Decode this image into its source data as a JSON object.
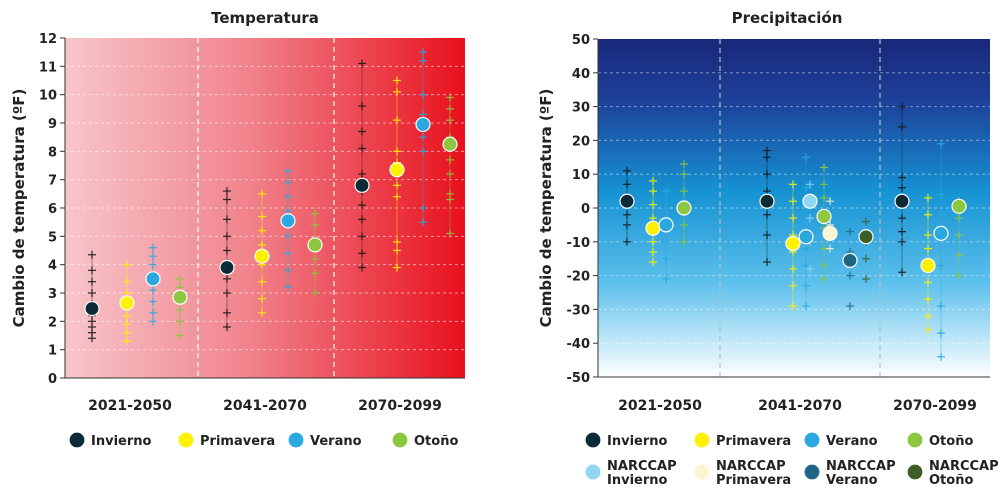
{
  "chart_data": [
    {
      "type": "scatter",
      "title": "Temperatura",
      "ylabel": "Cambio de temperatura (ºF)",
      "xlabel": "",
      "ylim": [
        0,
        12
      ],
      "yticks": [
        0,
        1,
        2,
        3,
        4,
        5,
        6,
        7,
        8,
        9,
        10,
        11,
        12
      ],
      "grid": true,
      "legend_position": "bottom",
      "background": "pink-to-red gradient",
      "periods": [
        "2021-2050",
        "2041-2070",
        "2070-2099"
      ],
      "series": [
        {
          "name": "Invierno",
          "color": "#0d2a37",
          "kind": "mean",
          "values": [
            2.45,
            3.9,
            6.8
          ],
          "models": [
            [
              1.4,
              1.6,
              1.8,
              2.0,
              2.2,
              2.6,
              3.0,
              3.4,
              3.8,
              4.35
            ],
            [
              1.8,
              2.3,
              3.0,
              3.5,
              4.5,
              5.0,
              5.6,
              6.3,
              6.6
            ],
            [
              3.9,
              4.4,
              5.0,
              5.6,
              6.1,
              6.6,
              7.2,
              8.1,
              8.7,
              9.6,
              11.1
            ]
          ]
        },
        {
          "name": "Primavera",
          "color": "#fff200",
          "kind": "mean",
          "values": [
            2.65,
            4.3,
            7.35
          ],
          "models": [
            [
              1.3,
              1.6,
              1.9,
              2.2,
              2.7,
              3.0,
              3.4,
              4.0
            ],
            [
              2.3,
              2.8,
              3.4,
              4.0,
              4.7,
              5.2,
              5.7,
              6.5
            ],
            [
              3.9,
              4.5,
              4.8,
              6.4,
              6.8,
              7.6,
              8.0,
              9.1,
              10.1,
              10.5
            ]
          ]
        },
        {
          "name": "Verano",
          "color": "#2ba8df",
          "kind": "mean",
          "values": [
            3.5,
            5.55,
            8.95
          ],
          "models": [
            [
              2.0,
              2.3,
              2.7,
              3.1,
              3.6,
              4.0,
              4.3,
              4.6
            ],
            [
              3.2,
              3.8,
              4.4,
              5.0,
              5.9,
              6.4,
              6.9,
              7.3
            ],
            [
              5.5,
              6.0,
              8.0,
              8.5,
              9.3,
              10.0,
              11.2,
              11.5
            ]
          ]
        },
        {
          "name": "Otoño",
          "color": "#8dc63f",
          "kind": "mean",
          "values": [
            2.85,
            4.7,
            8.25
          ],
          "models": [
            [
              1.5,
              2.0,
              2.4,
              2.9,
              3.2,
              3.5
            ],
            [
              3.0,
              3.7,
              4.2,
              4.9,
              5.4,
              5.8
            ],
            [
              5.1,
              6.3,
              6.5,
              7.2,
              7.7,
              8.5,
              9.1,
              9.5,
              9.9
            ]
          ]
        }
      ]
    },
    {
      "type": "scatter",
      "title": "Precipitación",
      "ylabel": "Cambio de temperatura (ºF)",
      "xlabel": "",
      "ylim": [
        -50,
        50
      ],
      "yticks": [
        50,
        40,
        30,
        20,
        10,
        0,
        -10,
        -20,
        -30,
        -40,
        -50
      ],
      "grid": true,
      "legend_position": "bottom",
      "background": "navy-to-white gradient",
      "periods": [
        "2021-2050",
        "2041-2070",
        "2070-2099"
      ],
      "series": [
        {
          "name": "Invierno",
          "color": "#0d2a37",
          "kind": "mean",
          "values": [
            2,
            2,
            2
          ],
          "models": [
            [
              -10,
              -5,
              -2,
              3,
              7,
              11
            ],
            [
              -16,
              -8,
              -2,
              5,
              10,
              15,
              17
            ],
            [
              -19,
              -10,
              -7,
              -3,
              2,
              6,
              9,
              24,
              30
            ]
          ]
        },
        {
          "name": "Primavera",
          "color": "#fff200",
          "kind": "mean",
          "values": [
            -6,
            -10.5,
            -17
          ],
          "models": [
            [
              -16,
              -13,
              -10,
              -7,
              -3,
              1,
              5,
              8
            ],
            [
              -29,
              -23,
              -18,
              -13,
              -8,
              -3,
              2,
              7
            ],
            [
              -36,
              -32,
              -27,
              -22,
              -18,
              -12,
              -8,
              -2,
              3
            ]
          ]
        },
        {
          "name": "Verano",
          "color": "#2ba8df",
          "kind": "mean",
          "values": [
            -5,
            -8.5,
            -7.5
          ],
          "models": [
            [
              -21,
              -15,
              -10,
              -5,
              0,
              5
            ],
            [
              -29,
              -23,
              -17,
              -12,
              -5,
              1,
              6,
              15
            ],
            [
              -44,
              -37,
              -29,
              -17,
              -9,
              -2,
              4,
              19
            ]
          ]
        },
        {
          "name": "Otoño",
          "color": "#8dc63f",
          "kind": "mean",
          "values": [
            0,
            -2.5,
            0.5
          ],
          "models": [
            [
              -10,
              -5,
              0,
              5,
              10,
              13
            ],
            [
              -21,
              -17,
              -12,
              -6,
              -2,
              3,
              7,
              12
            ],
            [
              -20,
              -14,
              -8,
              -3,
              2
            ]
          ]
        },
        {
          "name": "NARCCAP Invierno",
          "color": "#8fd6f2",
          "kind": "narccap",
          "values": [
            null,
            2,
            null
          ],
          "models": [
            [],
            [
              -18,
              -10,
              -3,
              3,
              7
            ],
            []
          ]
        },
        {
          "name": "NARCCAP Primavera",
          "color": "#fbf6cf",
          "kind": "narccap",
          "values": [
            null,
            -7.5,
            null
          ],
          "models": [
            [],
            [
              -12,
              -5,
              2
            ],
            []
          ]
        },
        {
          "name": "NARCCAP Verano",
          "color": "#1d6784",
          "kind": "narccap",
          "values": [
            null,
            -15.5,
            null
          ],
          "models": [
            [],
            [
              -29,
              -20,
              -13,
              -7
            ],
            []
          ]
        },
        {
          "name": "NARCCAP Otoño",
          "color": "#3d5e26",
          "kind": "narccap",
          "values": [
            null,
            -8.5,
            null
          ],
          "models": [
            [],
            [
              -21,
              -15,
              -10,
              -4
            ],
            []
          ]
        }
      ]
    }
  ],
  "legend": {
    "left": [
      {
        "label": "Invierno",
        "color": "#0d2a37"
      },
      {
        "label": "Primavera",
        "color": "#fff200"
      },
      {
        "label": "Verano",
        "color": "#2ba8df"
      },
      {
        "label": "Otoño",
        "color": "#8dc63f"
      }
    ],
    "right_row1": [
      {
        "label": "Invierno",
        "color": "#0d2a37"
      },
      {
        "label": "Primavera",
        "color": "#fff200"
      },
      {
        "label": "Verano",
        "color": "#2ba8df"
      },
      {
        "label": "Otoño",
        "color": "#8dc63f"
      }
    ],
    "right_row2": [
      {
        "line1": "NARCCAP",
        "line2": "Invierno",
        "color": "#8fd6f2"
      },
      {
        "line1": "NARCCAP",
        "line2": "Primavera",
        "color": "#fbf6cf"
      },
      {
        "line1": "NARCCAP",
        "line2": "Verano",
        "color": "#1d6784"
      },
      {
        "line1": "NARCCAP",
        "line2": "Otoño",
        "color": "#3d5e26"
      }
    ]
  }
}
